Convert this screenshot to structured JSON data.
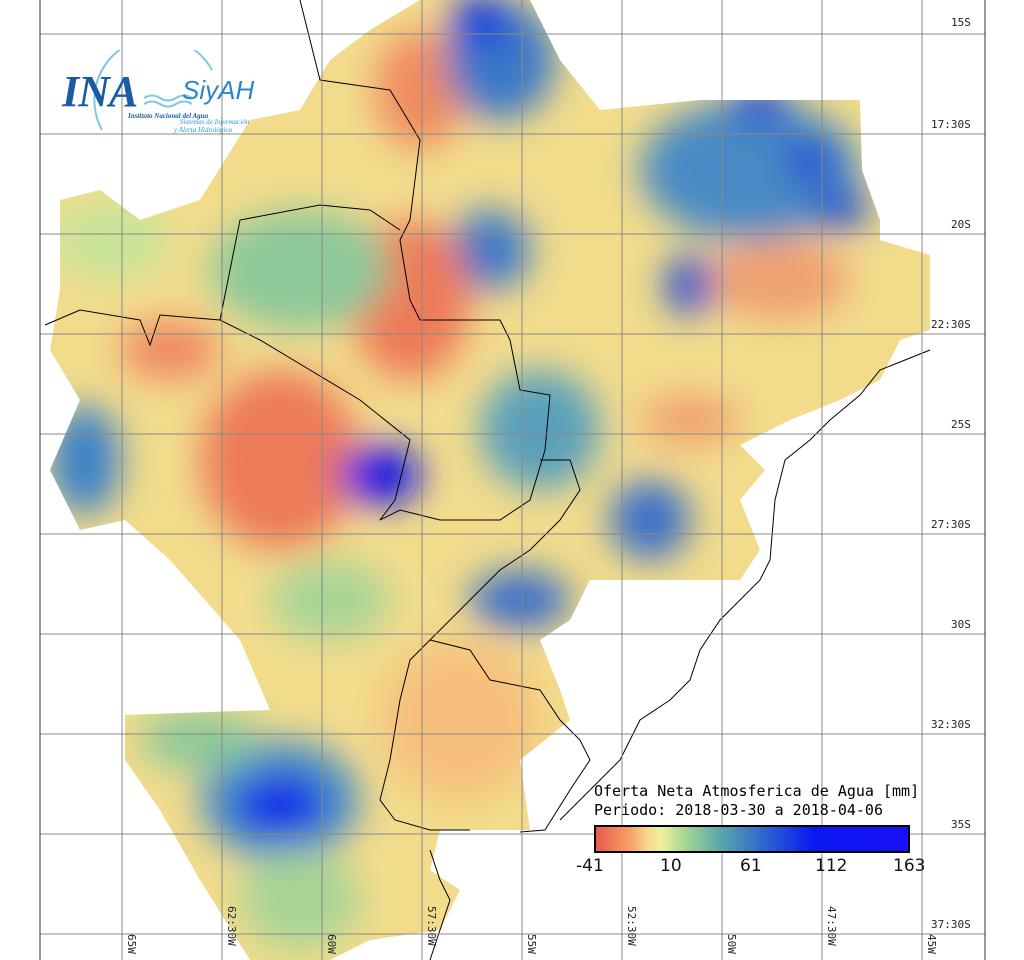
{
  "logo": {
    "brand": "INA",
    "product": "SiyAH",
    "org": "Instituto Nacional del Agua",
    "tagline_1": "Sistemas de Información",
    "tagline_2": "y Alerta Hidrológico"
  },
  "legend": {
    "title": "Oferta Neta Atmosferica de Agua [mm]",
    "period": "Periodo: 2018-03-30 a 2018-04-06",
    "ticks": [
      "-41",
      "10",
      "61",
      "112",
      "163"
    ]
  },
  "axes": {
    "latitude_labels": [
      "15S",
      "17:30S",
      "20S",
      "22:30S",
      "25S",
      "27:30S",
      "30S",
      "32:30S",
      "35S",
      "37:30S"
    ],
    "longitude_labels": [
      "65W",
      "62:30W",
      "60W",
      "57:30W",
      "55W",
      "52:30W",
      "50W",
      "47:30W",
      "45W"
    ]
  },
  "colors": {
    "min": "#e85a50",
    "mid": "#eef29a",
    "max": "#1810f8"
  }
}
